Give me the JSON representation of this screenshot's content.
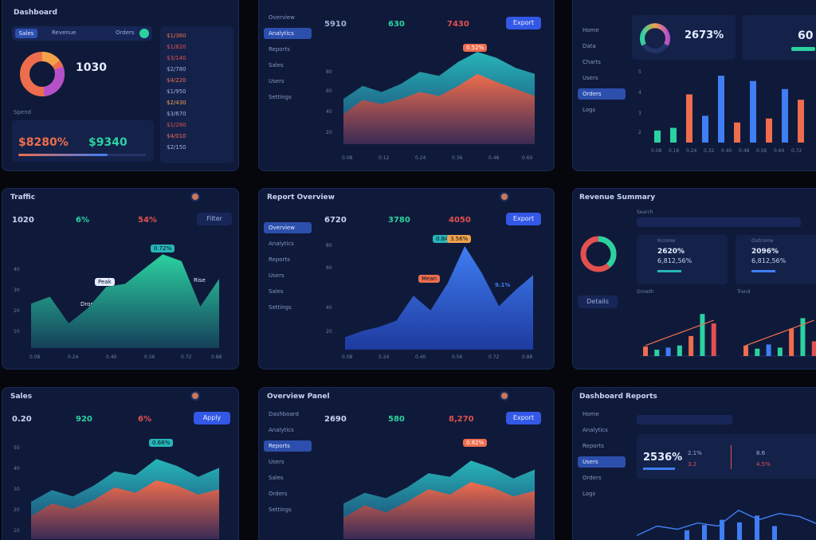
{
  "colors": {
    "bg": "#05070d",
    "panel": "#0f1a3a",
    "accent": "#3358e6",
    "orange": "#ee6d4d",
    "teal": "#27b5b8",
    "green": "#2bd2a0",
    "red": "#e2504f",
    "blue": "#3f7ef3"
  },
  "p1": {
    "title": "Dashboard",
    "tabs": [
      "Sales",
      "Revenue",
      "Orders"
    ],
    "donut_center": "1030",
    "stat_label": "Spend",
    "stat_a": "$8280%",
    "stat_b": "$9340",
    "list": [
      "$1/360",
      "$1/820",
      "$3/140",
      "$2/780",
      "$4/220",
      "$1/950",
      "$2/430",
      "$3/670",
      "$1/280",
      "$4/010",
      "$2/150"
    ]
  },
  "p2": {
    "nav": [
      "Overview",
      "Analytics",
      "Reports",
      "Sales",
      "Users",
      "Settings"
    ],
    "kpi_a": "5910",
    "kpi_b": "630",
    "kpi_c": "7430",
    "button": "Export",
    "peak": "0.52%",
    "yticks": [
      "80",
      "60",
      "40",
      "20"
    ],
    "xticks": [
      "0.08",
      "0.12",
      "0.24",
      "0.36",
      "0.48",
      "0.60"
    ],
    "area": {
      "top": [
        0.45,
        0.58,
        0.52,
        0.6,
        0.72,
        0.68,
        0.82,
        0.92,
        0.86,
        0.76,
        0.7
      ],
      "bottom": [
        0.3,
        0.44,
        0.4,
        0.45,
        0.52,
        0.48,
        0.58,
        0.7,
        0.62,
        0.55,
        0.48
      ]
    }
  },
  "p3": {
    "nav": [
      "Home",
      "Data",
      "Charts",
      "Users",
      "Orders",
      "Logs"
    ],
    "gauge_level": 0.7,
    "big_pct": "2673%",
    "big_b": "60",
    "yticks": [
      "5",
      "4",
      "3",
      "2",
      "1"
    ],
    "bars": [
      0.18,
      0.22,
      0.72,
      0.4,
      1.0,
      0.3,
      0.92,
      0.36,
      0.8,
      0.64
    ],
    "xticks": [
      "0.08",
      "0.16",
      "0.24",
      "0.32",
      "0.40",
      "0.48",
      "0.56",
      "0.64",
      "0.72"
    ]
  },
  "p4": {
    "title": "Traffic",
    "kpi_a": "1020",
    "kpi_b": "6%",
    "kpi_c": "54%",
    "button": "Filter",
    "peak": "0.72%",
    "note_a": "Peak",
    "note_b": "Drop",
    "note_c": "Rise",
    "yticks": [
      "40",
      "30",
      "20",
      "10"
    ],
    "xticks": [
      "0.08",
      "0.24",
      "0.40",
      "0.56",
      "0.72",
      "0.88"
    ],
    "area": [
      0.45,
      0.52,
      0.25,
      0.4,
      0.62,
      0.65,
      0.8,
      0.95,
      0.88,
      0.42,
      0.7
    ]
  },
  "p5": {
    "title": "Report Overview",
    "nav": [
      "Overview",
      "Analytics",
      "Reports",
      "Users",
      "Sales",
      "Settings"
    ],
    "kpi_a": "6720",
    "kpi_b": "3780",
    "kpi_c": "4050",
    "button": "Export",
    "label_a": "0.84",
    "label_b": "3.56%",
    "label_c": "Mean",
    "label_d": "9.1%",
    "yticks": [
      "80",
      "60",
      "40",
      "20"
    ],
    "xticks": [
      "0.08",
      "0.24",
      "0.40",
      "0.56",
      "0.72",
      "0.88"
    ],
    "area": [
      0.12,
      0.18,
      0.22,
      0.28,
      0.52,
      0.38,
      0.64,
      1.0,
      0.74,
      0.42,
      0.58,
      0.72
    ]
  },
  "p6": {
    "title": "Revenue Summary",
    "search": "Search",
    "card_a_title": "Income",
    "card_a_val": "2620%",
    "card_a_val2": "6,812,56%",
    "card_b_title": "Outcome",
    "card_b_val": "2096%",
    "card_b_val2": "6,812,56%",
    "button": "Details",
    "sub_a": "Growth",
    "sub_b": "Trend",
    "bars_a": [
      0.18,
      0.12,
      0.16,
      0.2,
      0.38,
      0.8,
      0.62
    ],
    "bars_b": [
      0.2,
      0.14,
      0.22,
      0.16,
      0.52,
      0.72,
      0.28
    ]
  },
  "p7": {
    "title": "Sales",
    "kpi_a": "0.20",
    "kpi_b": "920",
    "kpi_c": "6%",
    "button": "Apply",
    "peak": "0.68%",
    "yticks": [
      "50",
      "40",
      "30",
      "20",
      "10"
    ],
    "area": {
      "top": [
        0.42,
        0.55,
        0.48,
        0.6,
        0.76,
        0.72,
        0.9,
        0.82,
        0.7,
        0.8
      ],
      "bottom": [
        0.26,
        0.4,
        0.34,
        0.44,
        0.58,
        0.52,
        0.66,
        0.6,
        0.5,
        0.56
      ]
    }
  },
  "p8": {
    "title": "Overview Panel",
    "nav": [
      "Dashboard",
      "Analytics",
      "Reports",
      "Users",
      "Sales",
      "Orders",
      "Settings"
    ],
    "kpi_a": "2690",
    "kpi_b": "580",
    "kpi_c": "8,270",
    "button": "Export",
    "peak": "0.82%",
    "area": {
      "top": [
        0.4,
        0.52,
        0.46,
        0.58,
        0.74,
        0.7,
        0.88,
        0.8,
        0.68,
        0.78
      ],
      "bottom": [
        0.24,
        0.38,
        0.3,
        0.42,
        0.56,
        0.5,
        0.64,
        0.58,
        0.48,
        0.54
      ]
    }
  },
  "p9": {
    "title": "Dashboard Reports",
    "nav": [
      "Home",
      "Analytics",
      "Reports",
      "Users",
      "Orders",
      "Logs"
    ],
    "big_val": "2536%",
    "stats": [
      "2.1%",
      "3.2",
      "8.6",
      "4.5%"
    ],
    "line": [
      0.1,
      0.28,
      0.22,
      0.34,
      0.28,
      0.58,
      0.4,
      0.52,
      0.46,
      0.3
    ],
    "bars": [
      0.2,
      0.3,
      0.4,
      0.35,
      0.48,
      0.28
    ]
  }
}
